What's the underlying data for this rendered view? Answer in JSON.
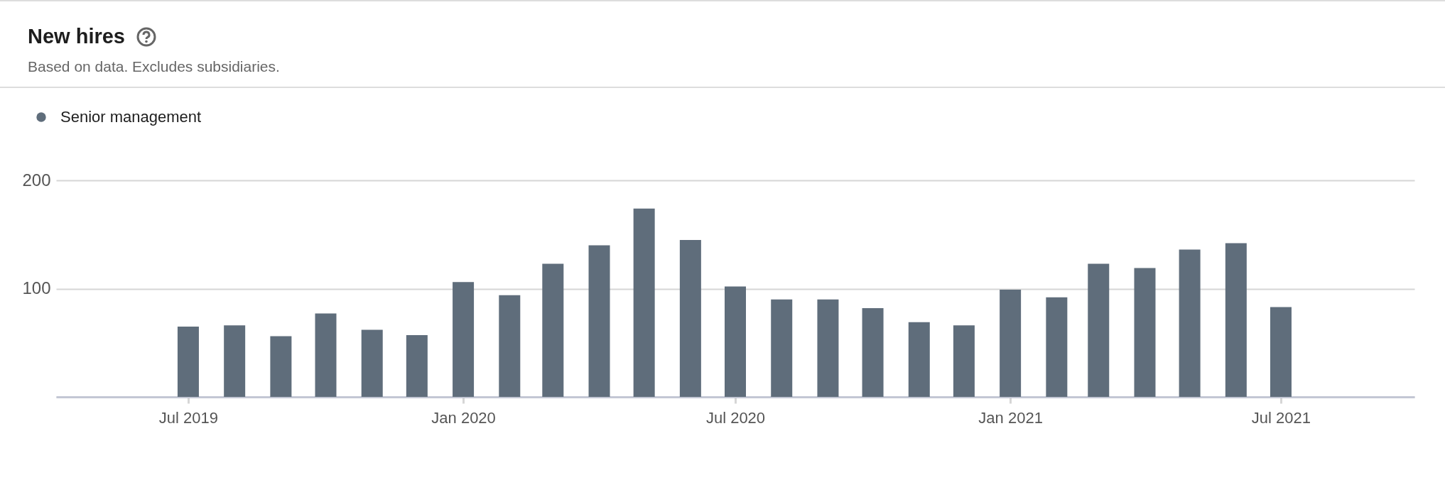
{
  "chart_data": {
    "type": "bar",
    "title": "New hires",
    "subtitle": "Based on data. Excludes subsidiaries.",
    "x": [
      "2019-07",
      "2019-08",
      "2019-09",
      "2019-10",
      "2019-11",
      "2019-12",
      "2020-01",
      "2020-02",
      "2020-03",
      "2020-04",
      "2020-05",
      "2020-06",
      "2020-07",
      "2020-08",
      "2020-09",
      "2020-10",
      "2020-11",
      "2020-12",
      "2021-01",
      "2021-02",
      "2021-03",
      "2021-04",
      "2021-05",
      "2021-06",
      "2021-07"
    ],
    "series": [
      {
        "name": "Senior management",
        "color": "#5f6d7b",
        "values": [
          65,
          66,
          56,
          77,
          62,
          57,
          106,
          94,
          123,
          140,
          174,
          145,
          102,
          90,
          90,
          82,
          69,
          66,
          99,
          92,
          123,
          119,
          136,
          142,
          83
        ]
      }
    ],
    "xlim": [
      "2019-04-06",
      "2021-09-26"
    ],
    "xticks": [
      {
        "value": "2019-07",
        "label": "Jul 2019"
      },
      {
        "value": "2020-01",
        "label": "Jan 2020"
      },
      {
        "value": "2020-07",
        "label": "Jul 2020"
      },
      {
        "value": "2021-01",
        "label": "Jan 2021"
      },
      {
        "value": "2021-07",
        "label": "Jul 2021"
      }
    ],
    "ylim": [
      0,
      200
    ],
    "yticks": [
      {
        "value": 0,
        "label": null
      },
      100,
      200
    ],
    "grid": "y",
    "legend": "top left"
  }
}
